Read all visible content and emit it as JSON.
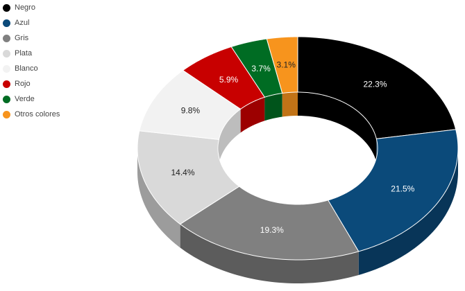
{
  "chart_data": {
    "type": "pie",
    "title": "",
    "categories": [
      "Negro",
      "Azul",
      "Gris",
      "Plata",
      "Blanco",
      "Rojo",
      "Verde",
      "Otros colores"
    ],
    "values": [
      22.3,
      21.5,
      19.3,
      14.4,
      9.8,
      5.9,
      3.7,
      3.1
    ],
    "value_labels": [
      "22.3%",
      "21.5%",
      "19.3%",
      "14.4%",
      "9.8%",
      "5.9%",
      "3.7%",
      "3.1%"
    ],
    "colors": [
      "#000000",
      "#0b4a7a",
      "#808080",
      "#d9d9d9",
      "#f2f2f2",
      "#c80000",
      "#006c23",
      "#f7941d"
    ],
    "style": "donut-3d",
    "legend_position": "top-left"
  }
}
